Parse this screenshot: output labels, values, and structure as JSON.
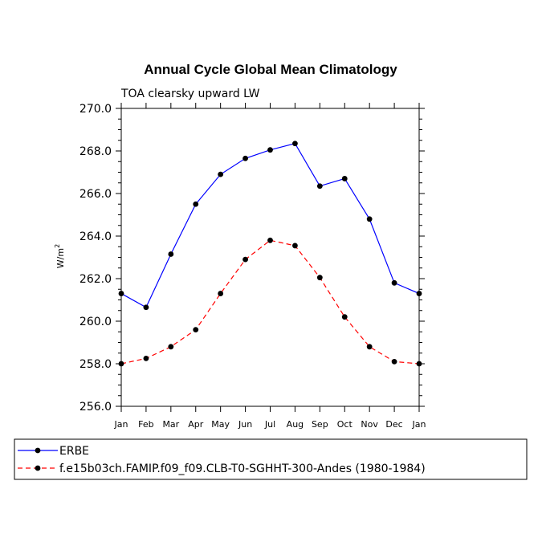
{
  "chart_data": {
    "type": "line",
    "title": "Annual Cycle Global Mean Climatology",
    "subtitle": "TOA clearsky upward LW",
    "xlabel": "",
    "ylabel": "W/m",
    "ylabel_sup": "2",
    "ylim": [
      256.0,
      270.0
    ],
    "yticks": [
      "256.0",
      "258.0",
      "260.0",
      "262.0",
      "264.0",
      "266.0",
      "268.0",
      "270.0"
    ],
    "categories": [
      "Jan",
      "Feb",
      "Mar",
      "Apr",
      "May",
      "Jun",
      "Jul",
      "Aug",
      "Sep",
      "Oct",
      "Nov",
      "Dec",
      "Jan"
    ],
    "series": [
      {
        "name": "ERBE",
        "color": "#0000ff",
        "dash": "solid",
        "values": [
          261.3,
          260.65,
          263.15,
          265.5,
          266.9,
          267.65,
          268.05,
          268.35,
          266.35,
          266.7,
          264.8,
          261.8,
          261.3
        ]
      },
      {
        "name": "f.e15b03ch.FAMIP.f09_f09.CLB-T0-SGHHT-300-Andes (1980-1984)",
        "color": "#ff0000",
        "dash": "dashed",
        "values": [
          258.0,
          258.25,
          258.8,
          259.6,
          261.3,
          262.9,
          263.8,
          263.55,
          262.05,
          260.2,
          258.8,
          258.1,
          258.0
        ]
      }
    ],
    "legend_position": "bottom"
  }
}
